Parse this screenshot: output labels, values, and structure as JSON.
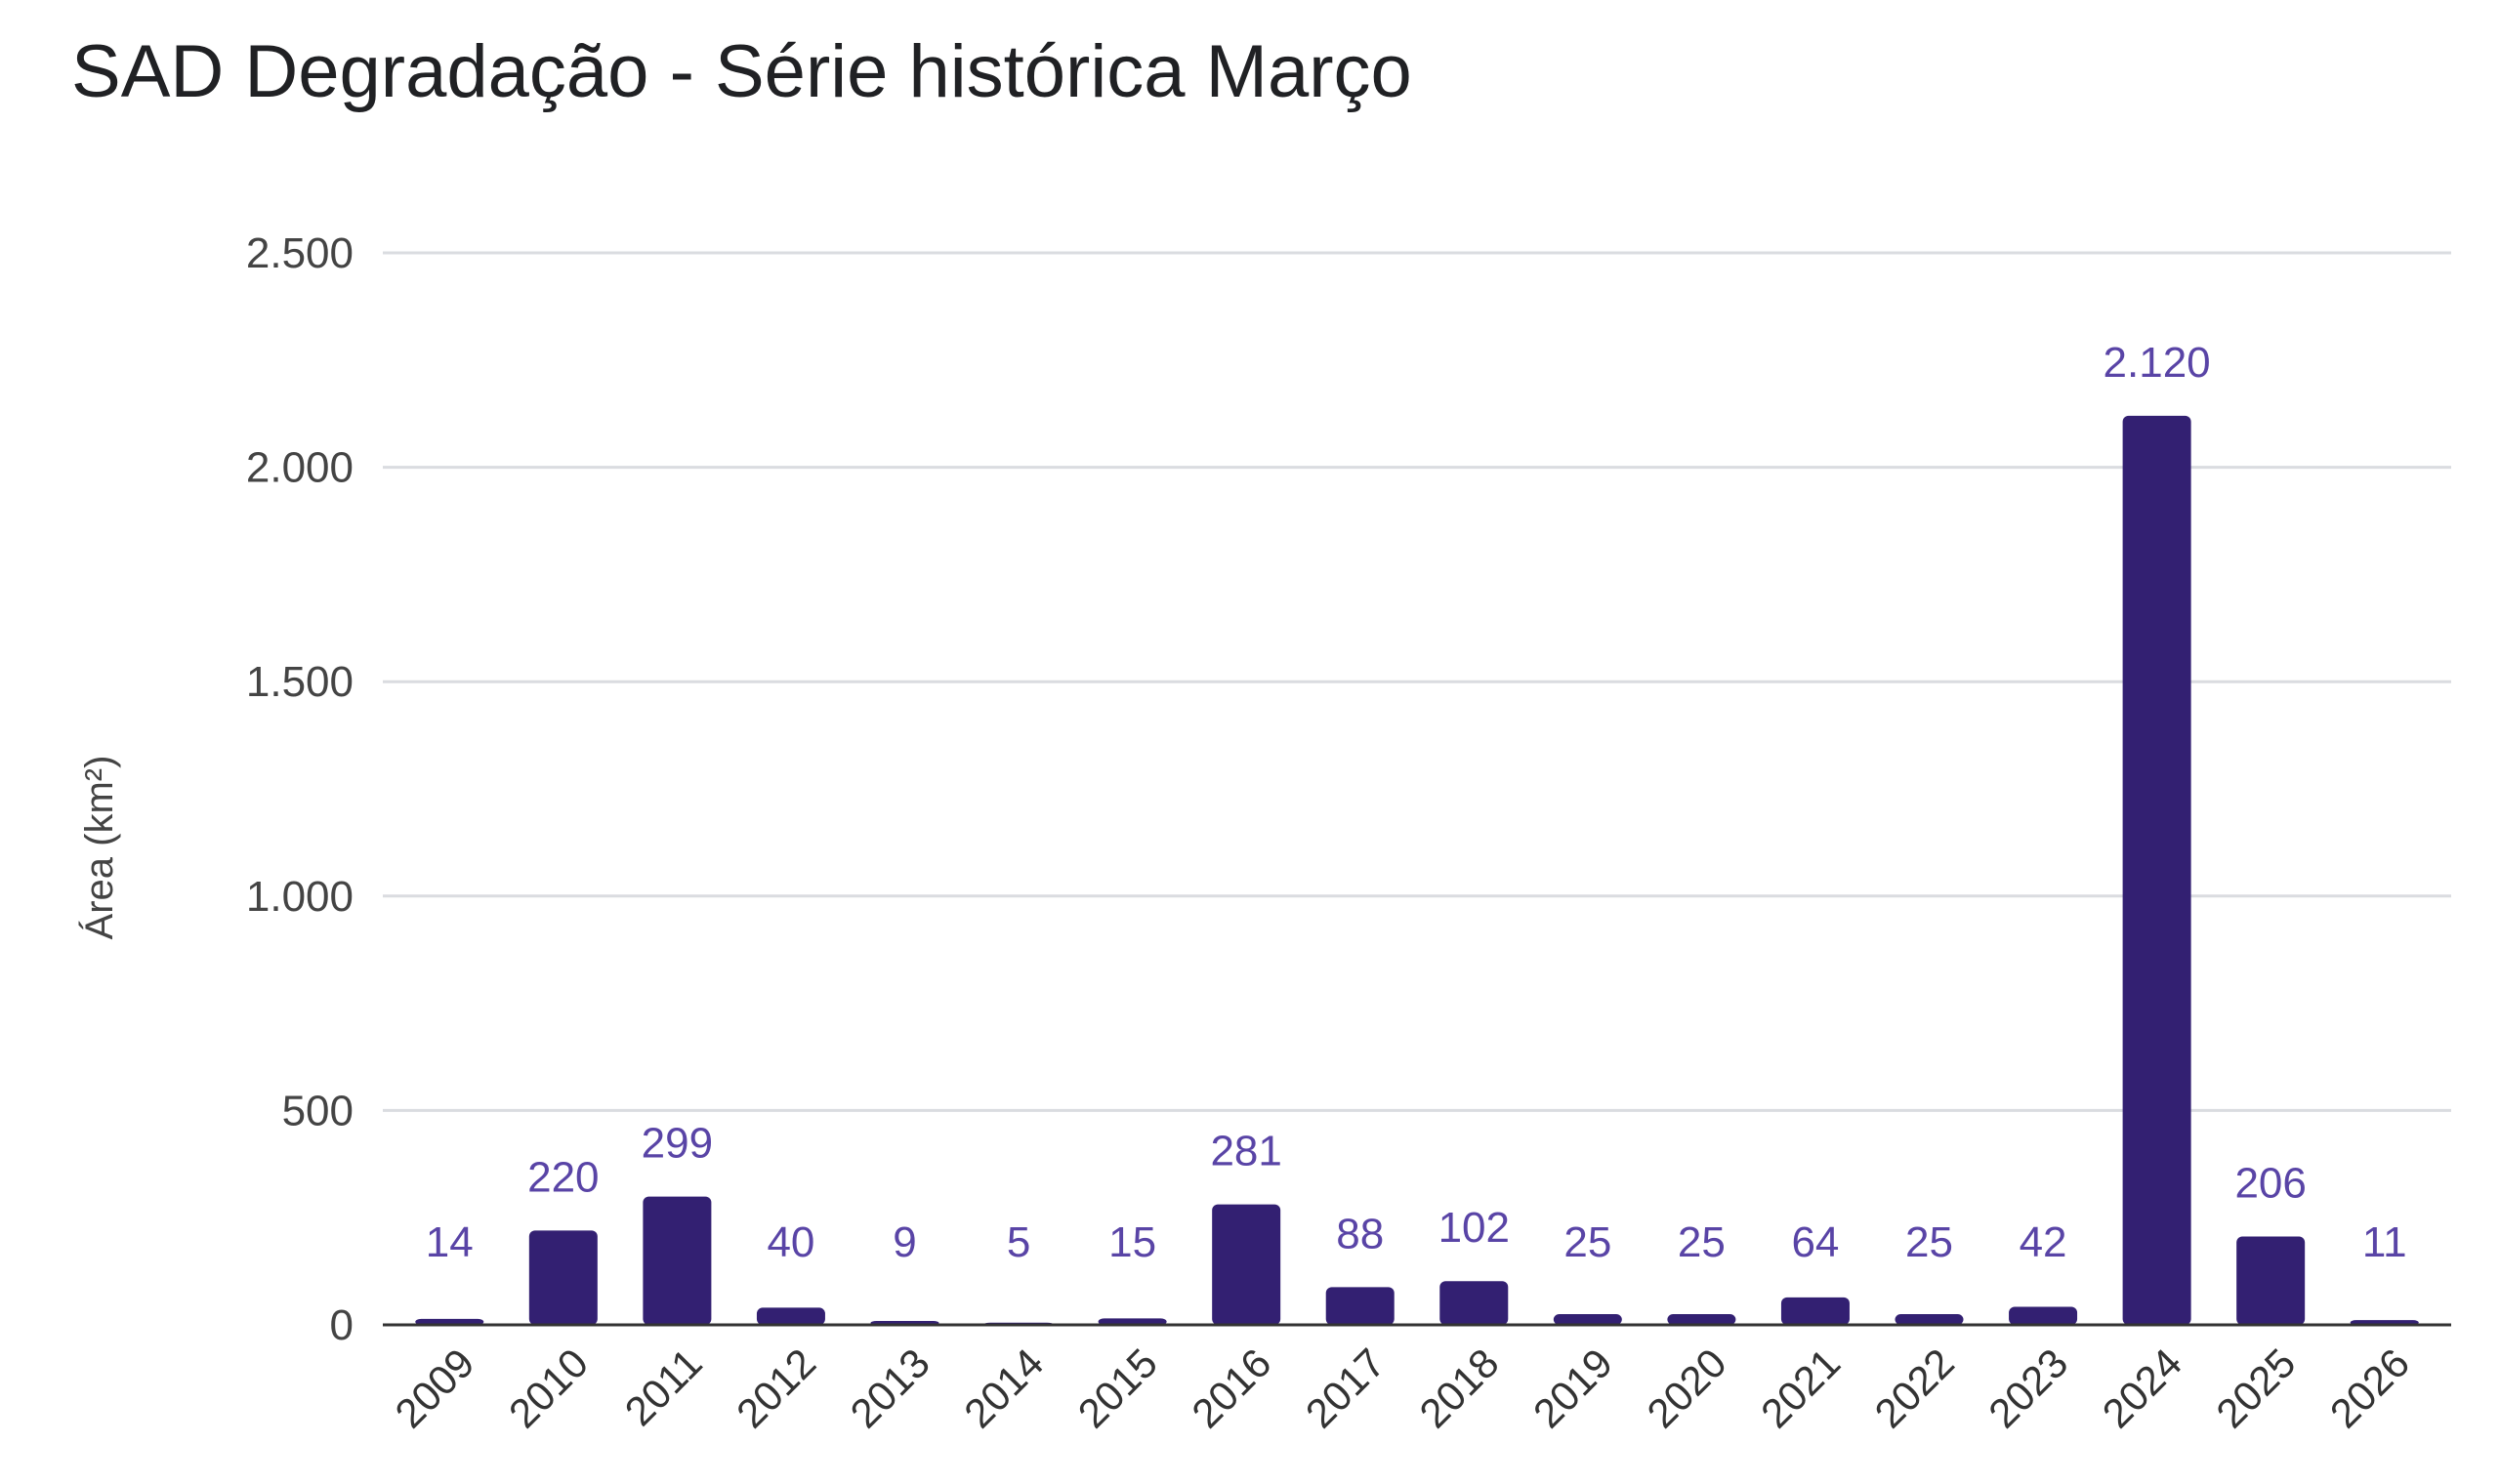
{
  "chart_data": {
    "type": "bar",
    "title": "SAD Degradação - Série histórica Março",
    "xlabel": "",
    "ylabel": "Área (km²)",
    "ylim": [
      0,
      2500
    ],
    "yticks": [
      0,
      500,
      1000,
      1500,
      2000,
      2500
    ],
    "ytick_labels": [
      "0",
      "500",
      "1.000",
      "1.500",
      "2.000",
      "2.500"
    ],
    "grid": true,
    "legend": "none",
    "bar_color": "#332072",
    "label_color": "#5944a6",
    "categories": [
      "2009",
      "2010",
      "2011",
      "2012",
      "2013",
      "2014",
      "2015",
      "2016",
      "2017",
      "2018",
      "2019",
      "2020",
      "2021",
      "2022",
      "2023",
      "2024",
      "2025",
      "2026"
    ],
    "values": [
      14,
      220,
      299,
      40,
      9,
      5,
      15,
      281,
      88,
      102,
      25,
      25,
      64,
      25,
      42,
      2120,
      206,
      11
    ],
    "value_labels": [
      "14",
      "220",
      "299",
      "40",
      "9",
      "5",
      "15",
      "281",
      "88",
      "102",
      "25",
      "25",
      "64",
      "25",
      "42",
      "2.120",
      "206",
      "11"
    ]
  }
}
